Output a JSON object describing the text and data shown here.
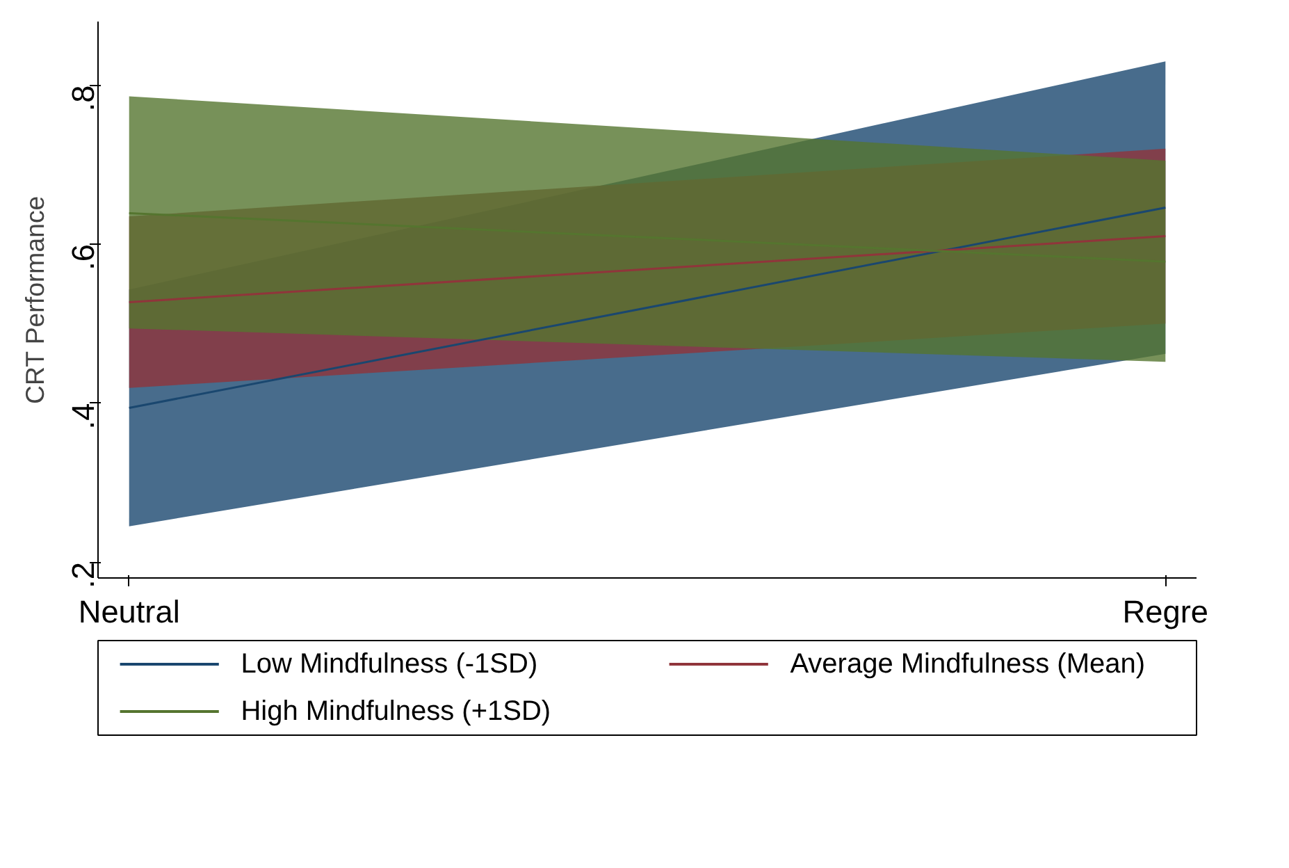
{
  "chart_data": {
    "type": "line",
    "ylabel": "CRT Performance",
    "categories": [
      "Neutral",
      "Regre"
    ],
    "ylim": [
      0.18,
      0.88
    ],
    "yticks": [
      {
        "value": 0.2,
        "label": ".2"
      },
      {
        "value": 0.4,
        "label": ".4"
      },
      {
        "value": 0.6,
        "label": ".6"
      },
      {
        "value": 0.8,
        "label": ".8"
      }
    ],
    "series": [
      {
        "name": "Low Mindfulness (-1SD)",
        "color": "#1a476f",
        "values": [
          0.394,
          0.646
        ],
        "lower": [
          0.245,
          0.462
        ],
        "upper": [
          0.543,
          0.83
        ]
      },
      {
        "name": "Average Mindfulness (Mean)",
        "color": "#90353b",
        "values": [
          0.527,
          0.61
        ],
        "lower": [
          0.419,
          0.5
        ],
        "upper": [
          0.635,
          0.72
        ]
      },
      {
        "name": "High Mindfulness (+1SD)",
        "color": "#55752f",
        "values": [
          0.639,
          0.578
        ],
        "lower": [
          0.494,
          0.452
        ],
        "upper": [
          0.786,
          0.705
        ]
      }
    ],
    "grid": false,
    "legend": "bottom",
    "marker": "none",
    "line_style": "solid"
  }
}
